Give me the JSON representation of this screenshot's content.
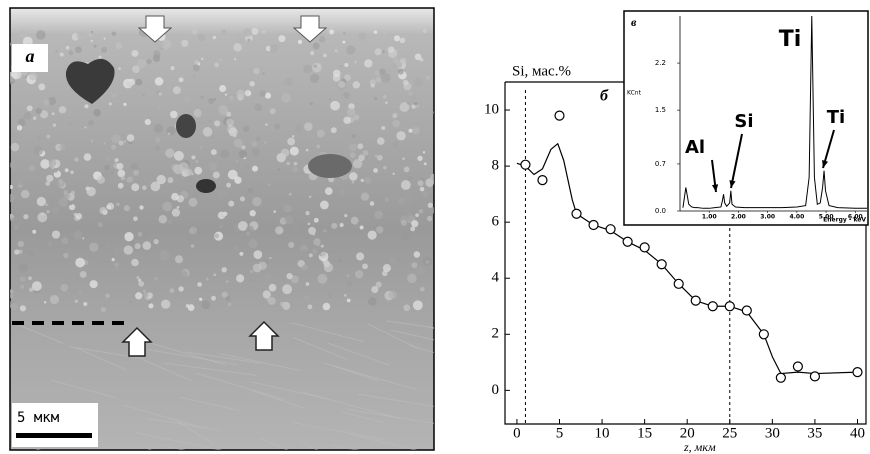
{
  "image": {
    "label": "а",
    "scale_bar": "5 мкм"
  },
  "chart_data": [
    {
      "type": "scatter",
      "label": "б",
      "y_label": "Si, мас.%",
      "x_label": "z, мкм",
      "xlim": [
        -1.4,
        41
      ],
      "ylim": [
        -1.2,
        11
      ],
      "xticks": [
        0,
        5,
        10,
        15,
        20,
        25,
        30,
        35,
        40
      ],
      "yticks": [
        0,
        2,
        4,
        6,
        8,
        10
      ],
      "vlines": [
        1,
        25
      ],
      "series": [
        {
          "marker": "circle",
          "color": "#000000",
          "x": [
            1,
            3,
            5,
            7,
            9,
            11,
            13,
            15,
            17,
            19,
            21,
            23,
            25,
            27,
            29,
            31,
            33,
            35,
            40
          ],
          "values": [
            8.05,
            7.5,
            9.8,
            6.3,
            5.9,
            5.75,
            5.3,
            5.1,
            4.5,
            3.8,
            3.2,
            3.0,
            3.0,
            2.85,
            2.0,
            0.45,
            0.85,
            0.5,
            0.65
          ]
        },
        {
          "marker": "none",
          "color": "#000000",
          "x": [
            0,
            1,
            2,
            3,
            4,
            4.8,
            5.5,
            6.5,
            7,
            9,
            11,
            13,
            15,
            17,
            19,
            21,
            23,
            25,
            27,
            29,
            30,
            31,
            33,
            35,
            40
          ],
          "values": [
            8.1,
            8.0,
            7.7,
            7.9,
            8.6,
            8.8,
            8.2,
            6.8,
            6.3,
            5.9,
            5.7,
            5.3,
            5.0,
            4.5,
            3.8,
            3.2,
            3.0,
            3.0,
            2.8,
            2.0,
            1.2,
            0.6,
            0.65,
            0.6,
            0.65
          ]
        }
      ]
    },
    {
      "type": "line",
      "label": "в",
      "y_label": "KCnt",
      "x_label": "Energy - keV",
      "xlim": [
        0,
        6.4
      ],
      "ylim": [
        0,
        2.9
      ],
      "xticks": [
        {
          "value": 1,
          "label": "1.00"
        },
        {
          "value": 2,
          "label": "2.00"
        },
        {
          "value": 3,
          "label": "3.00"
        },
        {
          "value": 4,
          "label": "4.00"
        },
        {
          "value": 5,
          "label": "5.00"
        },
        {
          "value": 6,
          "label": "6.00"
        }
      ],
      "yticks": [
        {
          "value": 0,
          "label": "0.0"
        },
        0.7,
        1.5,
        2.2
      ],
      "color": "#000000",
      "x": [
        0.1,
        0.2,
        0.3,
        0.4,
        0.5,
        0.6,
        0.8,
        1.0,
        1.2,
        1.4,
        1.45,
        1.49,
        1.53,
        1.6,
        1.7,
        1.74,
        1.78,
        1.9,
        2.2,
        2.6,
        3.0,
        3.5,
        4.0,
        4.3,
        4.42,
        4.51,
        4.6,
        4.7,
        4.8,
        4.88,
        4.93,
        4.98,
        5.1,
        5.4,
        6.0,
        6.4
      ],
      "values": [
        0.05,
        0.35,
        0.1,
        0.06,
        0.05,
        0.05,
        0.04,
        0.04,
        0.05,
        0.06,
        0.15,
        0.25,
        0.12,
        0.07,
        0.12,
        0.3,
        0.1,
        0.06,
        0.05,
        0.05,
        0.05,
        0.05,
        0.06,
        0.08,
        0.5,
        2.9,
        0.5,
        0.1,
        0.12,
        0.35,
        0.6,
        0.3,
        0.08,
        0.05,
        0.04,
        0.04
      ],
      "annotations": [
        "Ti",
        "Al",
        "Si",
        "Ti"
      ]
    }
  ]
}
